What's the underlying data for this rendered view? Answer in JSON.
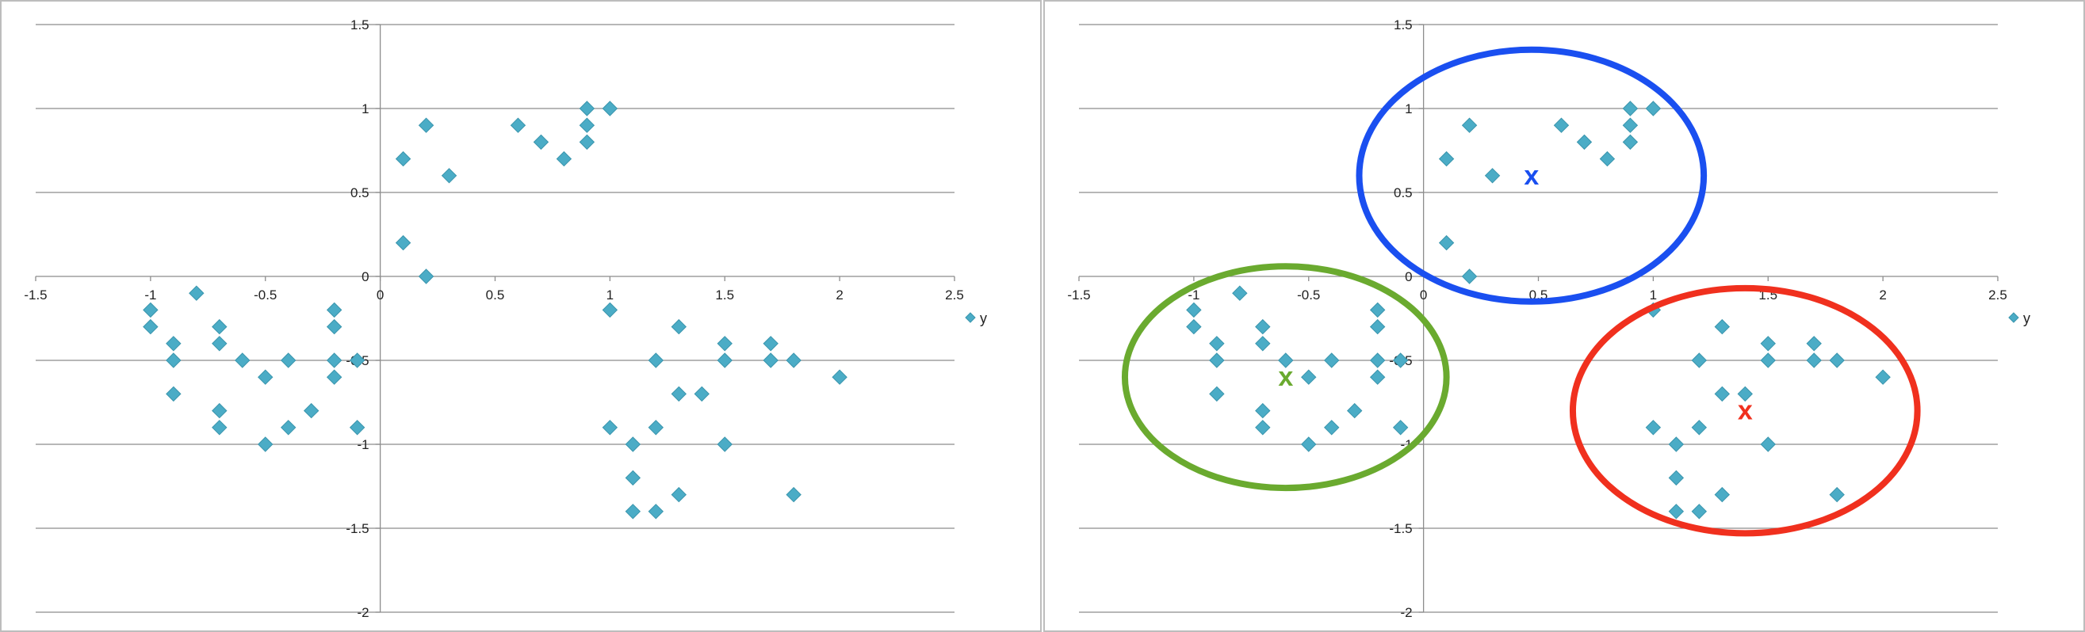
{
  "chart_data": [
    {
      "type": "scatter",
      "panel": "left",
      "xlim": [
        -1.5,
        2.5
      ],
      "ylim": [
        -2,
        1.5
      ],
      "xticks": [
        "-1.5",
        "-1",
        "-0.5",
        "0",
        "0.5",
        "1",
        "1.5",
        "2",
        "2.5"
      ],
      "yticks": [
        "1.5",
        "1",
        "0.5",
        "0",
        "-0.5",
        "-1",
        "-1.5",
        "-2"
      ],
      "grid": "horizontal",
      "legend": "right",
      "series": [
        {
          "name": "y",
          "color": "#4bacc6",
          "points": [
            [
              -1,
              -0.2
            ],
            [
              -1,
              -0.3
            ],
            [
              -0.9,
              -0.4
            ],
            [
              -0.9,
              -0.5
            ],
            [
              -0.9,
              -0.7
            ],
            [
              -0.8,
              -0.1
            ],
            [
              -0.7,
              -0.3
            ],
            [
              -0.7,
              -0.4
            ],
            [
              -0.7,
              -0.8
            ],
            [
              -0.7,
              -0.9
            ],
            [
              -0.6,
              -0.5
            ],
            [
              -0.5,
              -0.6
            ],
            [
              -0.5,
              -1.0
            ],
            [
              -0.4,
              -0.5
            ],
            [
              -0.4,
              -0.9
            ],
            [
              -0.3,
              -0.8
            ],
            [
              -0.2,
              -0.2
            ],
            [
              -0.2,
              -0.3
            ],
            [
              -0.2,
              -0.5
            ],
            [
              -0.2,
              -0.6
            ],
            [
              -0.1,
              -0.5
            ],
            [
              -0.1,
              -0.9
            ],
            [
              0.1,
              0.7
            ],
            [
              0.1,
              0.2
            ],
            [
              0.2,
              0.9
            ],
            [
              0.2,
              0.0
            ],
            [
              0.3,
              0.6
            ],
            [
              0.6,
              0.9
            ],
            [
              0.7,
              0.8
            ],
            [
              0.8,
              0.7
            ],
            [
              0.9,
              1.0
            ],
            [
              0.9,
              0.9
            ],
            [
              0.9,
              0.8
            ],
            [
              1.0,
              1.0
            ],
            [
              1.0,
              -0.2
            ],
            [
              1.0,
              -0.9
            ],
            [
              1.1,
              -1.0
            ],
            [
              1.1,
              -1.2
            ],
            [
              1.1,
              -1.4
            ],
            [
              1.2,
              -0.5
            ],
            [
              1.2,
              -0.9
            ],
            [
              1.2,
              -1.4
            ],
            [
              1.3,
              -0.3
            ],
            [
              1.3,
              -0.7
            ],
            [
              1.3,
              -1.3
            ],
            [
              1.4,
              -0.7
            ],
            [
              1.5,
              -0.4
            ],
            [
              1.5,
              -0.5
            ],
            [
              1.5,
              -1.0
            ],
            [
              1.7,
              -0.4
            ],
            [
              1.7,
              -0.5
            ],
            [
              1.8,
              -0.5
            ],
            [
              1.8,
              -1.3
            ],
            [
              2.0,
              -0.6
            ]
          ]
        }
      ]
    },
    {
      "type": "scatter",
      "panel": "right",
      "xlim": [
        -1.5,
        2.5
      ],
      "ylim": [
        -2,
        1.5
      ],
      "xticks": [
        "-1.5",
        "-1",
        "-0.5",
        "0",
        "0.5",
        "1",
        "1.5",
        "2",
        "2.5"
      ],
      "yticks": [
        "1.5",
        "1",
        "0.5",
        "0",
        "-0.5",
        "-1",
        "-1.5",
        "-2"
      ],
      "grid": "horizontal",
      "legend": "right",
      "series": [
        {
          "name": "y",
          "color": "#4bacc6",
          "points": [
            [
              -1,
              -0.2
            ],
            [
              -1,
              -0.3
            ],
            [
              -0.9,
              -0.4
            ],
            [
              -0.9,
              -0.5
            ],
            [
              -0.9,
              -0.7
            ],
            [
              -0.8,
              -0.1
            ],
            [
              -0.7,
              -0.3
            ],
            [
              -0.7,
              -0.4
            ],
            [
              -0.7,
              -0.8
            ],
            [
              -0.7,
              -0.9
            ],
            [
              -0.6,
              -0.5
            ],
            [
              -0.5,
              -0.6
            ],
            [
              -0.5,
              -1.0
            ],
            [
              -0.4,
              -0.5
            ],
            [
              -0.4,
              -0.9
            ],
            [
              -0.3,
              -0.8
            ],
            [
              -0.2,
              -0.2
            ],
            [
              -0.2,
              -0.3
            ],
            [
              -0.2,
              -0.5
            ],
            [
              -0.2,
              -0.6
            ],
            [
              -0.1,
              -0.5
            ],
            [
              -0.1,
              -0.9
            ],
            [
              0.1,
              0.7
            ],
            [
              0.1,
              0.2
            ],
            [
              0.2,
              0.9
            ],
            [
              0.2,
              0.0
            ],
            [
              0.3,
              0.6
            ],
            [
              0.6,
              0.9
            ],
            [
              0.7,
              0.8
            ],
            [
              0.8,
              0.7
            ],
            [
              0.9,
              1.0
            ],
            [
              0.9,
              0.9
            ],
            [
              0.9,
              0.8
            ],
            [
              1.0,
              1.0
            ],
            [
              1.0,
              -0.2
            ],
            [
              1.0,
              -0.9
            ],
            [
              1.1,
              -1.0
            ],
            [
              1.1,
              -1.2
            ],
            [
              1.1,
              -1.4
            ],
            [
              1.2,
              -0.5
            ],
            [
              1.2,
              -0.9
            ],
            [
              1.2,
              -1.4
            ],
            [
              1.3,
              -0.3
            ],
            [
              1.3,
              -0.7
            ],
            [
              1.3,
              -1.3
            ],
            [
              1.4,
              -0.7
            ],
            [
              1.5,
              -0.4
            ],
            [
              1.5,
              -0.5
            ],
            [
              1.5,
              -1.0
            ],
            [
              1.7,
              -0.4
            ],
            [
              1.7,
              -0.5
            ],
            [
              1.8,
              -0.5
            ],
            [
              1.8,
              -1.3
            ],
            [
              2.0,
              -0.6
            ]
          ]
        }
      ],
      "clusters": [
        {
          "color": "#1a4ff0",
          "label": "x",
          "center": [
            0.47,
            0.6
          ],
          "radius": [
            0.75,
            0.75
          ]
        },
        {
          "color": "#6aaa2f",
          "label": "x",
          "center": [
            -0.6,
            -0.6
          ],
          "radius": [
            0.7,
            0.66
          ]
        },
        {
          "color": "#f0301e",
          "label": "x",
          "center": [
            1.4,
            -0.8
          ],
          "radius": [
            0.75,
            0.73
          ]
        }
      ]
    }
  ]
}
